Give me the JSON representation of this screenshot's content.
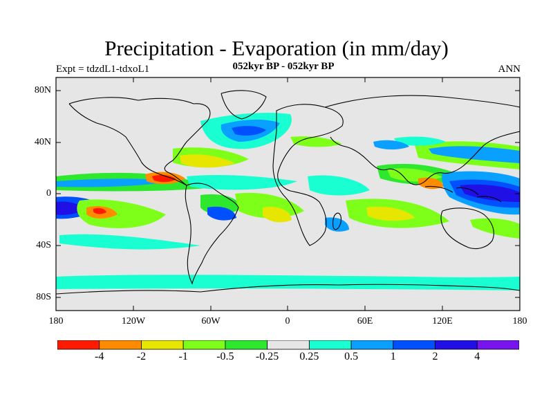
{
  "title": "Precipitation - Evaporation (in mm/day)",
  "expt_label": "Expt = tdzdL1-tdxoL1",
  "subtitle": "052kyr BP - 052kyr BP",
  "season": "ANN",
  "lat_ticks": [
    "80N",
    "40N",
    "0",
    "40S",
    "80S"
  ],
  "lon_ticks": [
    "180",
    "120W",
    "60W",
    "0",
    "60E",
    "120E",
    "180"
  ],
  "colorbar": {
    "labels": [
      "-4",
      "-2",
      "-1",
      "-0.5",
      "-0.25",
      "0.25",
      "0.5",
      "1",
      "2",
      "4"
    ],
    "colors": [
      "#ff1a00",
      "#ff8c00",
      "#e6e600",
      "#7dff1a",
      "#2ee82e",
      "#e6e6e6",
      "#1affd2",
      "#0aa0ff",
      "#0050ff",
      "#2010e6",
      "#7814f0"
    ]
  },
  "colors": {
    "background": "#e6e6e6",
    "coast": "#000000"
  }
}
